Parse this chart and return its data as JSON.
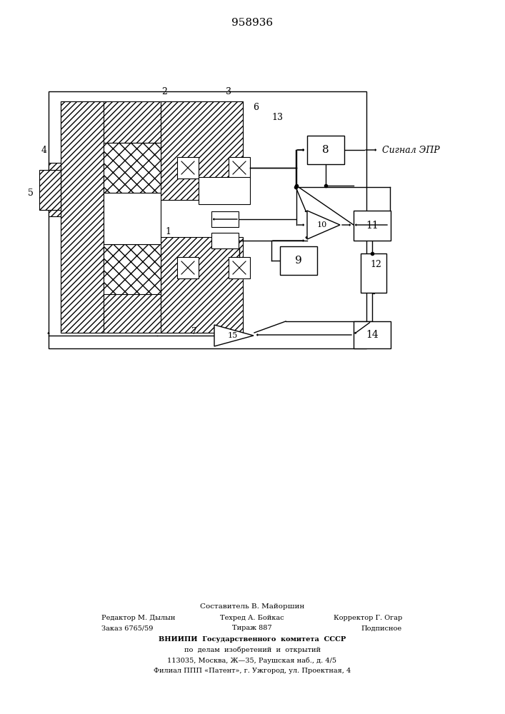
{
  "title": "958936",
  "bg": "#ffffff",
  "signal_label": "Сигнал ЭПР",
  "footer_line0": "Составитель В. Майоршин",
  "footer_line1a": "Редактор М. Дылын",
  "footer_line1b": "Техред А. Бойкас",
  "footer_line1c": "Корректор Г. Огар",
  "footer_line2a": "Заказ 6765/59",
  "footer_line2b": "Тираж 887",
  "footer_line2c": "Подписное",
  "footer_line3": "ВНИИПИ  Государственного  комитета  СССР",
  "footer_line4": "по  делам  изобретений  и  открытий",
  "footer_line5": "113035, Москва, Ж—35, Раушская наб., д. 4/5",
  "footer_line6": "Филиал ППП «Патент», г. Ужгород, ул. Проектная, 4"
}
